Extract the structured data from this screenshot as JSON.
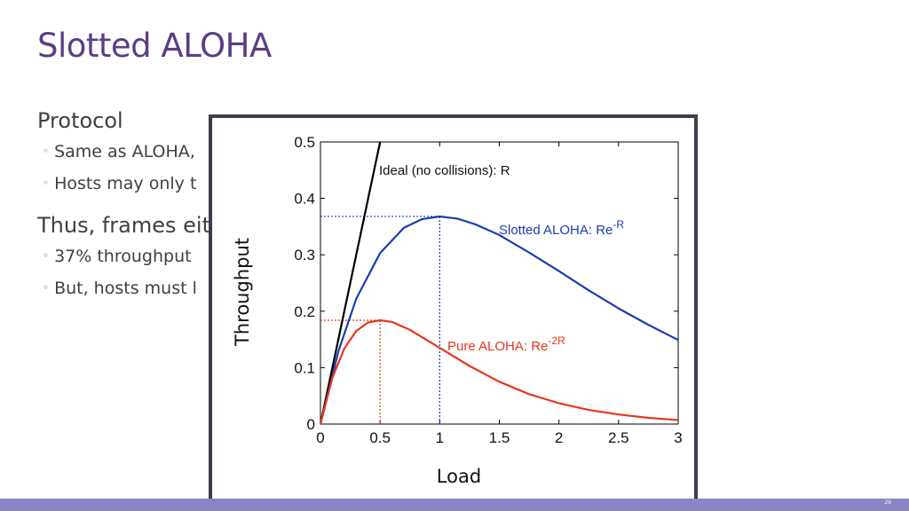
{
  "slide": {
    "title": "Slotted ALOHA",
    "heading1": "Protocol",
    "bullets1": [
      "Same as ALOHA,",
      "Hosts may only t"
    ],
    "heading2": "Thus, frames eit",
    "bullets2": [
      "37% throughput",
      "But, hosts must l"
    ],
    "page_number": "29",
    "colors": {
      "title": "#5b3d86",
      "footer": "#8a84c4"
    }
  },
  "chart_data": {
    "type": "line",
    "xlabel": "Load",
    "ylabel": "Throughput",
    "xlim": [
      0,
      3
    ],
    "ylim": [
      0,
      0.5
    ],
    "xticks": [
      "0",
      "0.5",
      "1",
      "1.5",
      "2",
      "2.5",
      "3"
    ],
    "yticks": [
      "0",
      "0.1",
      "0.2",
      "0.3",
      "0.4",
      "0.5"
    ],
    "grid": false,
    "series": [
      {
        "name": "Ideal (no collisions): R",
        "color": "#000000",
        "x": [
          0,
          0.5
        ],
        "y": [
          0,
          0.5
        ]
      },
      {
        "name": "Slotted ALOHA: Re",
        "exponent": "-R",
        "color": "#1a3cb0",
        "x": [
          0,
          0.15,
          0.3,
          0.5,
          0.7,
          0.85,
          1.0,
          1.15,
          1.3,
          1.5,
          1.75,
          2.0,
          2.25,
          2.5,
          2.75,
          3.0
        ],
        "y": [
          0,
          0.129,
          0.222,
          0.303,
          0.348,
          0.363,
          0.368,
          0.364,
          0.354,
          0.335,
          0.304,
          0.271,
          0.237,
          0.205,
          0.176,
          0.149
        ]
      },
      {
        "name": "Pure ALOHA: Re",
        "exponent": "-2R",
        "color": "#e8361e",
        "x": [
          0,
          0.1,
          0.2,
          0.3,
          0.4,
          0.5,
          0.6,
          0.75,
          1.0,
          1.25,
          1.5,
          1.75,
          2.0,
          2.25,
          2.5,
          2.75,
          3.0
        ],
        "y": [
          0,
          0.082,
          0.134,
          0.165,
          0.18,
          0.184,
          0.181,
          0.167,
          0.135,
          0.103,
          0.075,
          0.053,
          0.037,
          0.025,
          0.017,
          0.011,
          0.007
        ]
      }
    ],
    "annotations": [
      {
        "color": "#1a3cb0",
        "x": 1.0,
        "y": 0.368
      },
      {
        "color": "#e8361e",
        "x": 0.5,
        "y": 0.184
      }
    ]
  }
}
